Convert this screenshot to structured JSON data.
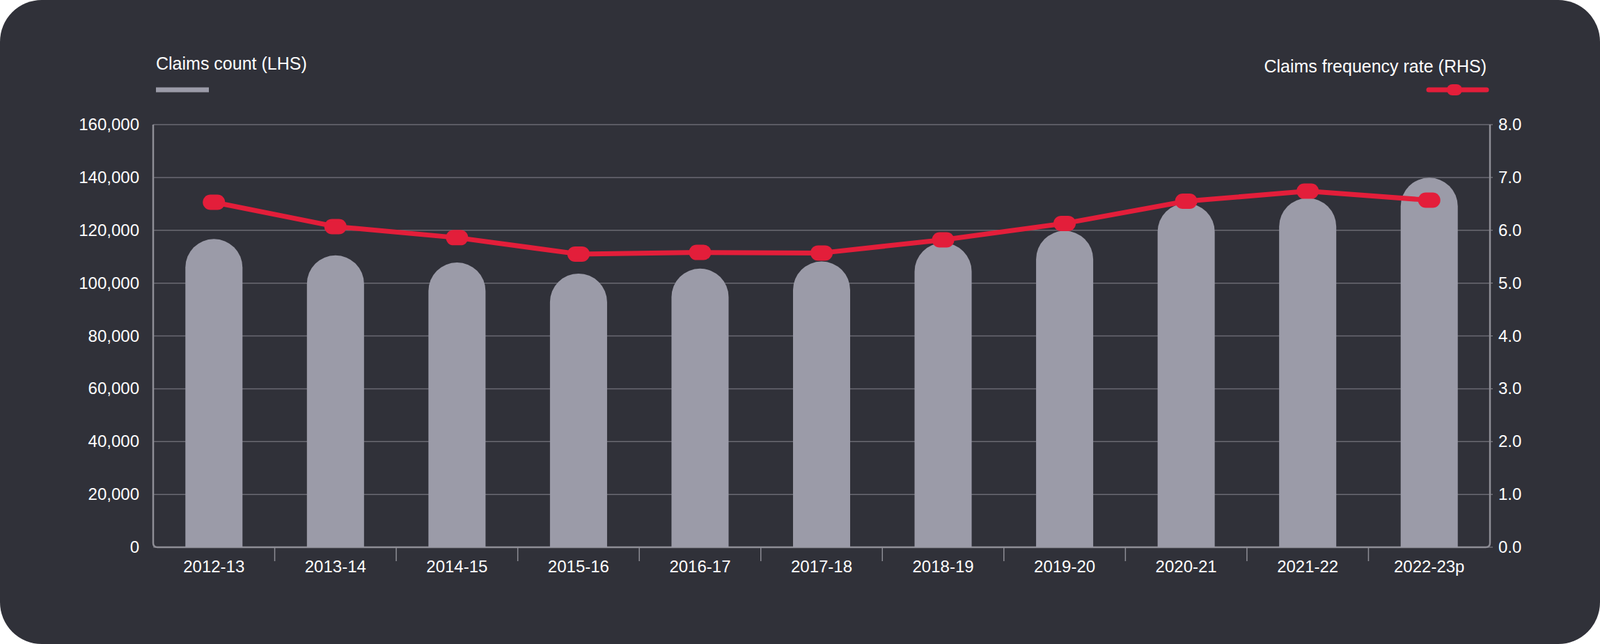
{
  "chart_data": {
    "type": "bar",
    "categories": [
      "2012-13",
      "2013-14",
      "2014-15",
      "2015-16",
      "2016-17",
      "2017-18",
      "2018-19",
      "2019-20",
      "2020-21",
      "2021-22",
      "2022-23p"
    ],
    "series": [
      {
        "name": "Claims count (LHS)",
        "type": "bar",
        "color": "#9b9ba8",
        "values": [
          116700,
          110500,
          107800,
          103600,
          105500,
          108200,
          115200,
          119800,
          130200,
          132200,
          139900
        ]
      },
      {
        "name": "Claims frequency rate (RHS)",
        "type": "line",
        "axis": "y2",
        "color": "#e31e3a",
        "marker": "circle",
        "values": [
          6.53,
          6.07,
          5.86,
          5.55,
          5.58,
          5.57,
          5.82,
          6.13,
          6.55,
          6.74,
          6.57
        ]
      }
    ],
    "ylim": [
      0,
      160000
    ],
    "yticks": [
      0,
      {
        "value": 20000,
        "label": "20,000"
      },
      {
        "value": 40000,
        "label": "40,000"
      },
      {
        "value": 60000,
        "label": "60,000"
      },
      {
        "value": 80000,
        "label": "80,000"
      },
      {
        "value": 100000,
        "label": "100,000"
      },
      {
        "value": 120000,
        "label": "120,000"
      },
      {
        "value": 140000,
        "label": "140,000"
      },
      {
        "value": 160000,
        "label": "160,000"
      }
    ],
    "y2lim": [
      0,
      8
    ],
    "y2ticks": [
      {
        "value": 0,
        "label": "0.0"
      },
      {
        "value": 1,
        "label": "1.0"
      },
      {
        "value": 2,
        "label": "2.0"
      },
      {
        "value": 3,
        "label": "3.0"
      },
      {
        "value": 4,
        "label": "4.0"
      },
      {
        "value": 5,
        "label": "5.0"
      },
      {
        "value": 6,
        "label": "6.0"
      },
      {
        "value": 7,
        "label": "7.0"
      },
      {
        "value": 8,
        "label": "8.0"
      }
    ],
    "grid": true,
    "legend": "top"
  }
}
